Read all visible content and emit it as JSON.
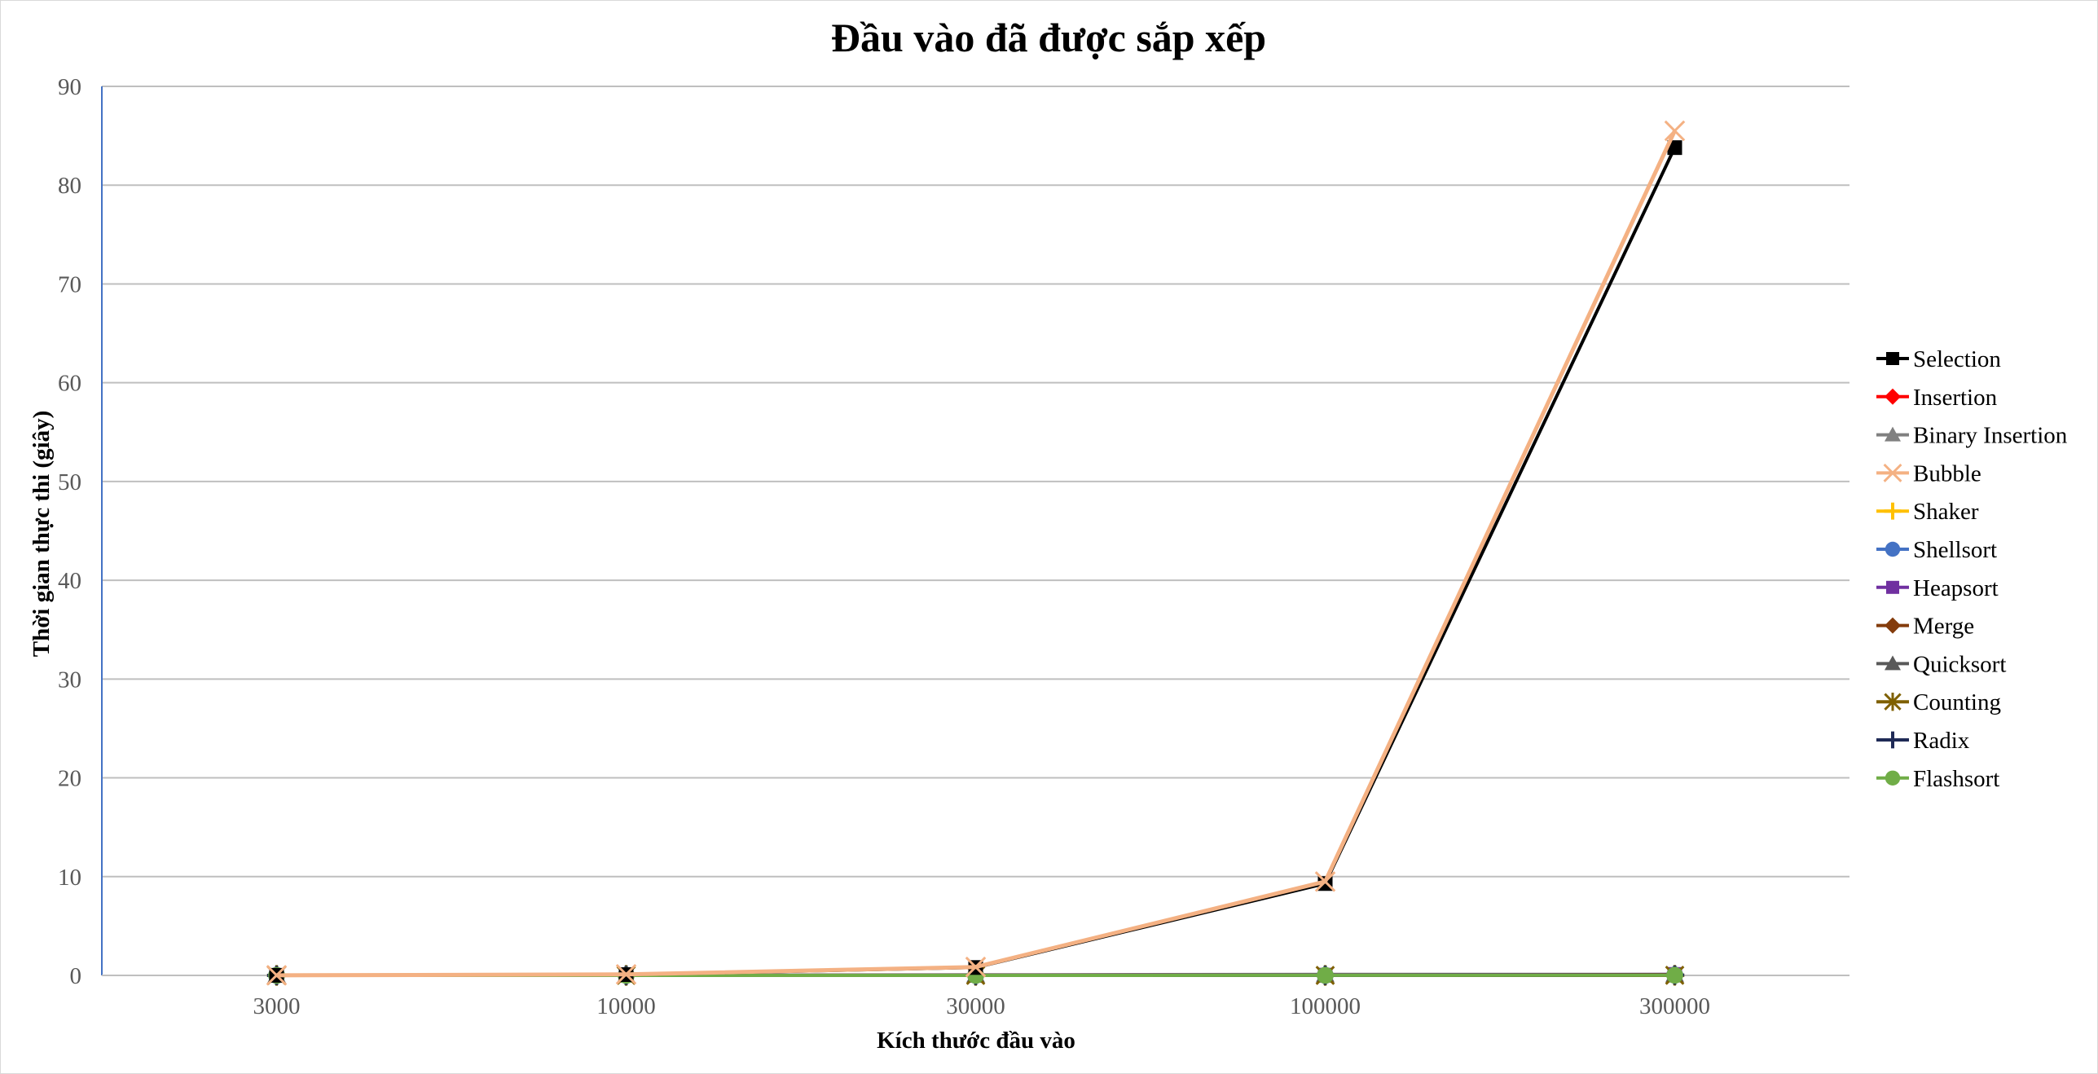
{
  "chart_data": {
    "type": "line",
    "title": "Đầu vào đã được sắp xếp",
    "xlabel": "Kích thước đầu vào",
    "ylabel": "Thời gian thực thi (giây)",
    "categories": [
      "3000",
      "10000",
      "30000",
      "100000",
      "300000"
    ],
    "ylim": [
      0,
      90
    ],
    "yticks": [
      0,
      10,
      20,
      30,
      40,
      50,
      60,
      70,
      80,
      90
    ],
    "grid": true,
    "legend": "right",
    "series": [
      {
        "name": "Selection",
        "color": "#000000",
        "marker": "square",
        "values": [
          0.01,
          0.08,
          0.8,
          9.3,
          83.8
        ]
      },
      {
        "name": "Insertion",
        "color": "#ff0000",
        "marker": "diamond",
        "values": [
          0,
          0,
          0,
          0,
          0
        ]
      },
      {
        "name": "Binary Insertion",
        "color": "#808080",
        "marker": "triangle",
        "values": [
          0.01,
          0.02,
          0.06,
          0.1,
          0.1
        ]
      },
      {
        "name": "Bubble",
        "color": "#f4b183",
        "marker": "x",
        "values": [
          0.01,
          0.1,
          0.85,
          9.5,
          85.5
        ]
      },
      {
        "name": "Shaker",
        "color": "#ffc000",
        "marker": "plus",
        "values": [
          0,
          0,
          0,
          0,
          0
        ]
      },
      {
        "name": "Shellsort",
        "color": "#4472c4",
        "marker": "circle",
        "values": [
          0,
          0,
          0,
          0.01,
          0.05
        ]
      },
      {
        "name": "Heapsort",
        "color": "#7030a0",
        "marker": "square",
        "values": [
          0,
          0,
          0.01,
          0.03,
          0.1
        ]
      },
      {
        "name": "Merge",
        "color": "#843c0c",
        "marker": "diamond",
        "values": [
          0,
          0,
          0.01,
          0.02,
          0.07
        ]
      },
      {
        "name": "Quicksort",
        "color": "#595959",
        "marker": "triangle",
        "values": [
          0,
          0,
          0,
          0.01,
          0.03
        ]
      },
      {
        "name": "Counting",
        "color": "#7f6000",
        "marker": "star",
        "values": [
          0,
          0,
          0,
          0,
          0.01
        ]
      },
      {
        "name": "Radix",
        "color": "#1f2a56",
        "marker": "plus",
        "values": [
          0,
          0,
          0,
          0.01,
          0.03
        ]
      },
      {
        "name": "Flashsort",
        "color": "#70ad47",
        "marker": "circle",
        "values": [
          0,
          0,
          0,
          0.01,
          0.02
        ]
      }
    ]
  }
}
